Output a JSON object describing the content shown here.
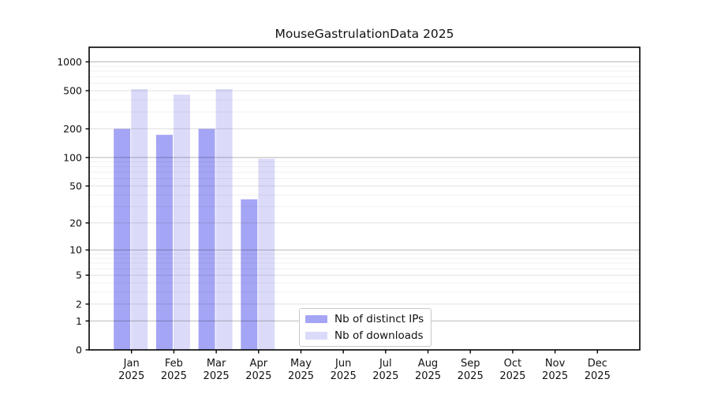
{
  "figure": {
    "title": "MouseGastrulationData 2025"
  },
  "colors": {
    "distinct_ips_bar": "#a5a5f5",
    "downloads_bar": "#dbdbf9",
    "axis_spine": "#000000",
    "grid_major": "rgba(0,0,0,0.28)",
    "grid_mid": "rgba(0,0,0,0.12)",
    "grid_minor": "rgba(0,0,0,0.06)",
    "tick_text": "#111111",
    "legend_border": "#c9c9c9"
  },
  "chart_data": {
    "type": "bar",
    "title": "MouseGastrulationData 2025",
    "xlabel": "",
    "ylabel": "",
    "y_scale": "log1p",
    "grid": true,
    "legend_position": "lower-center-inside",
    "year_label": "2025",
    "categories": [
      "Jan",
      "Feb",
      "Mar",
      "Apr",
      "May",
      "Jun",
      "Jul",
      "Aug",
      "Sep",
      "Oct",
      "Nov",
      "Dec"
    ],
    "y_ticks": [
      0,
      1,
      2,
      5,
      10,
      20,
      50,
      100,
      200,
      500,
      1000
    ],
    "ylim": [
      0,
      1400
    ],
    "series": [
      {
        "name": "Nb of distinct IPs",
        "color": "#a5a5f5",
        "values": [
          200,
          173,
          200,
          36,
          0,
          0,
          0,
          0,
          0,
          0,
          0,
          0
        ]
      },
      {
        "name": "Nb of downloads",
        "color": "#dbdbf9",
        "values": [
          520,
          455,
          520,
          97,
          0,
          0,
          0,
          0,
          0,
          0,
          0,
          0
        ]
      }
    ]
  }
}
